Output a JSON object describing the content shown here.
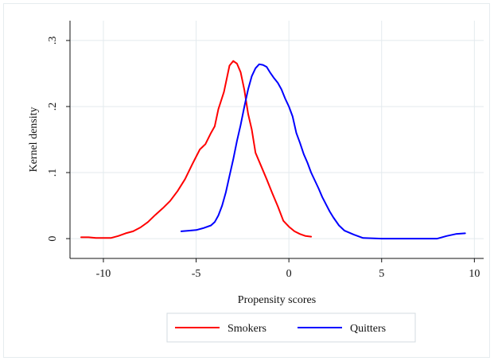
{
  "chart_data": {
    "type": "line",
    "xlabel": "Propensity scores",
    "ylabel": "Kernel density",
    "xlim": [
      -11.8,
      10.5
    ],
    "ylim": [
      -0.03,
      0.33
    ],
    "xticks": [
      -10,
      -5,
      0,
      5,
      10
    ],
    "xtick_labels": [
      "-10",
      "-5",
      "0",
      "5",
      "10"
    ],
    "yticks": [
      0,
      0.1,
      0.2,
      0.3
    ],
    "ytick_labels": [
      "0",
      ".1",
      ".2",
      ".3"
    ],
    "grid": true,
    "legend_position": "bottom",
    "series": [
      {
        "name": "Smokers",
        "color": "#ff0000",
        "x": [
          -11.2,
          -10.8,
          -10.4,
          -10.0,
          -9.6,
          -9.2,
          -8.8,
          -8.4,
          -8.0,
          -7.6,
          -7.2,
          -6.8,
          -6.4,
          -6.0,
          -5.6,
          -5.2,
          -4.8,
          -4.5,
          -4.2,
          -4.0,
          -3.8,
          -3.5,
          -3.2,
          -3.0,
          -2.8,
          -2.6,
          -2.4,
          -2.2,
          -2.0,
          -1.8,
          -1.5,
          -1.2,
          -0.9,
          -0.6,
          -0.3,
          0.0,
          0.3,
          0.6,
          0.9,
          1.2
        ],
        "y": [
          0.002,
          0.002,
          0.001,
          0.001,
          0.001,
          0.004,
          0.008,
          0.011,
          0.017,
          0.025,
          0.036,
          0.046,
          0.057,
          0.072,
          0.09,
          0.113,
          0.135,
          0.143,
          0.16,
          0.17,
          0.196,
          0.222,
          0.262,
          0.269,
          0.265,
          0.252,
          0.225,
          0.189,
          0.165,
          0.13,
          0.11,
          0.09,
          0.069,
          0.049,
          0.027,
          0.018,
          0.011,
          0.007,
          0.004,
          0.003
        ]
      },
      {
        "name": "Quitters",
        "color": "#0000ff",
        "x": [
          -5.8,
          -5.4,
          -5.0,
          -4.6,
          -4.2,
          -4.0,
          -3.8,
          -3.6,
          -3.4,
          -3.2,
          -3.0,
          -2.8,
          -2.6,
          -2.4,
          -2.2,
          -2.0,
          -1.8,
          -1.6,
          -1.4,
          -1.2,
          -1.0,
          -0.8,
          -0.6,
          -0.4,
          -0.2,
          0.0,
          0.2,
          0.4,
          0.6,
          0.8,
          1.0,
          1.2,
          1.4,
          1.6,
          1.8,
          2.0,
          2.2,
          2.4,
          2.7,
          3.0,
          3.5,
          4.0,
          5.0,
          6.0,
          7.0,
          8.0,
          8.5,
          9.0,
          9.5
        ],
        "y": [
          0.011,
          0.012,
          0.013,
          0.016,
          0.02,
          0.025,
          0.035,
          0.05,
          0.07,
          0.095,
          0.12,
          0.148,
          0.172,
          0.2,
          0.226,
          0.246,
          0.258,
          0.264,
          0.263,
          0.26,
          0.251,
          0.243,
          0.236,
          0.226,
          0.212,
          0.2,
          0.185,
          0.16,
          0.145,
          0.128,
          0.115,
          0.1,
          0.088,
          0.076,
          0.063,
          0.052,
          0.041,
          0.032,
          0.02,
          0.012,
          0.006,
          0.001,
          0.0,
          0.0,
          0.0,
          0.0,
          0.004,
          0.007,
          0.008
        ]
      }
    ]
  }
}
